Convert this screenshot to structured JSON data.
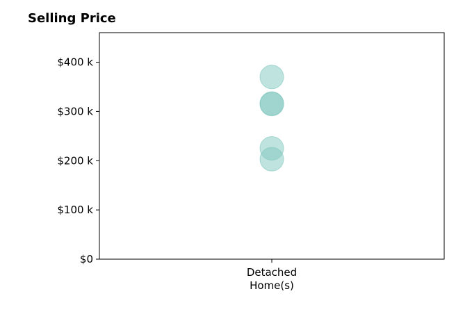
{
  "chart_data": {
    "type": "scatter",
    "title": "Selling Price",
    "xlabel": "",
    "ylabel": "",
    "categories": [
      "Detached\nHome(s)"
    ],
    "series": [
      {
        "category": "Detached\nHome(s)",
        "values": [
          370000,
          316000,
          315000,
          225000,
          203000
        ]
      }
    ],
    "ylim": [
      0,
      460000
    ],
    "yticks": [
      0,
      100000,
      200000,
      300000,
      400000
    ],
    "ytick_labels": [
      "$0",
      "$100 k",
      "$200 k",
      "$300 k",
      "$400 k"
    ],
    "grid": false,
    "marker_color": "#7fc7be",
    "marker_alpha": 0.5
  }
}
